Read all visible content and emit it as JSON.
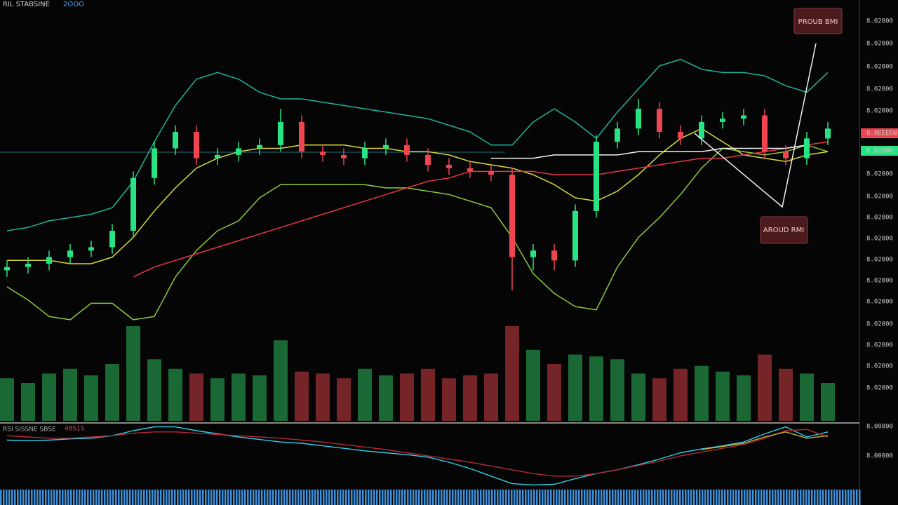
{
  "chart_data": {
    "type": "candlestick",
    "header": "RIL STABSINE",
    "header_tag": "2OOO",
    "ylim": [
      0,
      100
    ],
    "up_color": "#27e383",
    "down_color": "#ee4550",
    "open": [
      18,
      19,
      20,
      22,
      24,
      25,
      30,
      46,
      55,
      60,
      52,
      53,
      55,
      56,
      63,
      54,
      53,
      52,
      55,
      56,
      53,
      50,
      49,
      48,
      47,
      22,
      24,
      21,
      36,
      57,
      61,
      67,
      60,
      58,
      63,
      64,
      65,
      54,
      52,
      58
    ],
    "close": [
      19,
      20,
      22,
      24,
      25,
      30,
      46,
      55,
      60,
      52,
      53,
      55,
      56,
      63,
      54,
      53,
      52,
      55,
      56,
      53,
      50,
      49,
      48,
      47,
      22,
      24,
      21,
      36,
      57,
      61,
      67,
      60,
      58,
      63,
      64,
      65,
      54,
      52,
      58,
      61
    ],
    "high": [
      21,
      22,
      24,
      26,
      27,
      32,
      48,
      57,
      62,
      62,
      55,
      57,
      58,
      67,
      65,
      56,
      55,
      57,
      58,
      58,
      55,
      52,
      51,
      50,
      49,
      26,
      26,
      38,
      59,
      63,
      70,
      69,
      62,
      65,
      66,
      67,
      67,
      56,
      60,
      63
    ],
    "low": [
      16,
      17,
      18,
      20,
      22,
      23,
      28,
      44,
      53,
      50,
      50,
      51,
      53,
      54,
      52,
      51,
      50,
      50,
      53,
      51,
      48,
      47,
      46,
      45,
      12,
      18,
      18,
      19,
      34,
      55,
      59,
      58,
      56,
      56,
      61,
      62,
      52,
      50,
      50,
      56
    ],
    "series": [
      {
        "color": "#1fb39a",
        "values": [
          30,
          31,
          33,
          34,
          35,
          37,
          45,
          57,
          68,
          76,
          78,
          76,
          72,
          70,
          70,
          69,
          68,
          67,
          66,
          65,
          64,
          62,
          60,
          56,
          56,
          63,
          67,
          63,
          58,
          66,
          73,
          80,
          82,
          79,
          78,
          78,
          77,
          74,
          72,
          78
        ]
      },
      {
        "color": "#8fc93a",
        "values": [
          13,
          9,
          4,
          3,
          8,
          8,
          3,
          4,
          16,
          24,
          30,
          33,
          40,
          44,
          44,
          44,
          44,
          44,
          43,
          43,
          42,
          41,
          39,
          37,
          28,
          17,
          11,
          7,
          6,
          19,
          28,
          34,
          41,
          49,
          55,
          54,
          53,
          54,
          56,
          54
        ]
      },
      {
        "color": "#d8d83a",
        "values": [
          21,
          21,
          21,
          20,
          20,
          22,
          28,
          36,
          43,
          49,
          52,
          54,
          55,
          55,
          56,
          56,
          56,
          55,
          55,
          54,
          54,
          53,
          51,
          50,
          49,
          47,
          44,
          40,
          39,
          42,
          47,
          53,
          58,
          61,
          57,
          53,
          52,
          51,
          53,
          54
        ]
      },
      {
        "color": "#e8344a",
        "values": [
          null,
          null,
          null,
          null,
          null,
          null,
          16,
          19,
          21,
          23,
          25,
          27,
          29,
          31,
          33,
          35,
          37,
          39,
          41,
          43,
          45,
          46,
          48,
          48,
          48,
          48,
          47,
          47,
          47,
          48,
          49,
          50,
          51,
          52,
          52,
          53,
          54,
          55,
          56,
          57
        ]
      },
      {
        "color": "#f2f2f2",
        "values": [
          null,
          null,
          null,
          null,
          null,
          null,
          null,
          null,
          null,
          null,
          null,
          null,
          null,
          null,
          null,
          null,
          null,
          null,
          null,
          null,
          null,
          null,
          null,
          52,
          52,
          52,
          53,
          53,
          53,
          53,
          54,
          54,
          54,
          54,
          55,
          55,
          55,
          55,
          56,
          null
        ]
      }
    ],
    "annotations": [
      "PROUB BMI",
      "AROUD RMI"
    ],
    "price_labels": [
      "8.02000",
      "8.02000",
      "8.02000",
      "8.02000",
      "8.02000",
      "8.0EEEEN",
      "8.02000",
      "8.02000",
      "8.02000",
      "8.02000",
      "8.02000",
      "8.02000",
      "8.02000",
      "8.02000",
      "8.02000",
      "8.02000",
      "8.02000",
      "8.02000",
      "8.00000",
      "8.00000"
    ],
    "volume": {
      "ylim": [
        0,
        100
      ],
      "values": [
        45,
        40,
        50,
        55,
        48,
        60,
        100,
        65,
        55,
        50,
        45,
        50,
        48,
        85,
        52,
        50,
        45,
        55,
        48,
        50,
        55,
        45,
        48,
        50,
        100,
        75,
        60,
        70,
        68,
        65,
        50,
        45,
        55,
        58,
        52,
        48,
        70,
        55,
        50,
        40
      ]
    },
    "oscillator": {
      "label": "RSI SISSNE SBSE",
      "tag": "48S1S",
      "ylim": [
        0,
        100
      ],
      "series": [
        {
          "color": "#2fd0e8",
          "values": [
            75,
            74,
            75,
            77,
            78,
            82,
            90,
            96,
            96,
            90,
            85,
            80,
            76,
            72,
            70,
            66,
            62,
            58,
            55,
            52,
            48,
            40,
            30,
            18,
            6,
            4,
            5,
            14,
            22,
            28,
            36,
            45,
            55,
            61,
            66,
            72,
            85,
            96,
            80,
            88
          ]
        },
        {
          "color": "#b02a3a",
          "values": [
            82,
            80,
            78,
            78,
            80,
            82,
            86,
            88,
            88,
            86,
            84,
            82,
            80,
            78,
            75,
            72,
            68,
            64,
            60,
            55,
            50,
            45,
            40,
            34,
            28,
            22,
            18,
            18,
            22,
            28,
            35,
            42,
            50,
            56,
            62,
            68,
            78,
            90,
            92,
            80
          ]
        },
        {
          "color": "#c9b03a",
          "values": [
            null,
            null,
            null,
            null,
            null,
            null,
            null,
            null,
            null,
            null,
            null,
            null,
            null,
            null,
            null,
            null,
            null,
            null,
            null,
            null,
            null,
            null,
            null,
            null,
            null,
            null,
            null,
            null,
            null,
            null,
            null,
            null,
            null,
            60,
            65,
            70,
            80,
            88,
            78,
            82
          ]
        }
      ]
    }
  }
}
